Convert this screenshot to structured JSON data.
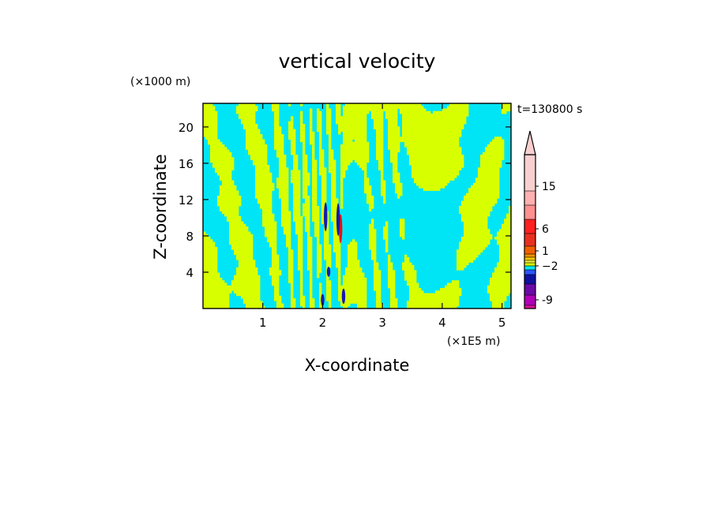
{
  "chart_data": {
    "type": "heatmap",
    "title": "vertical velocity",
    "xlabel": "X-coordinate",
    "ylabel": "Z-coordinate",
    "x_unit": "(×1E5 m)",
    "y_unit": "(×1000 m)",
    "time_label": "t=130800 s",
    "xlim": [
      0,
      5.15
    ],
    "ylim": [
      0,
      22.6
    ],
    "x_ticks": [
      1,
      2,
      3,
      4,
      5
    ],
    "x_tick_labels": [
      "1",
      "2",
      "3",
      "4",
      "5"
    ],
    "y_ticks": [
      4,
      8,
      12,
      16,
      20
    ],
    "y_tick_labels": [
      "4",
      "8",
      "12",
      "16",
      "20"
    ],
    "colorbar": {
      "levels": [
        -9,
        -2,
        1,
        6,
        15
      ],
      "level_labels": [
        "-9",
        "−2",
        "1",
        "6",
        "15"
      ],
      "colors": [
        "#e0109a",
        "#b000b8",
        "#6a0aa8",
        "#1010a0",
        "#2a55ff",
        "#00e5f0",
        "#d4f000",
        "#f0f040",
        "#f0c800",
        "#f09000",
        "#f06000",
        "#e83020",
        "#ff2020",
        "#ff9090",
        "#ffb0b0",
        "#f8d0d0"
      ],
      "extend": "max"
    },
    "field_colors": {
      "positive": "#d8ff00",
      "negative": "#00e5f5",
      "updraft": "#e81010",
      "downdraft": "#1818b0"
    },
    "features": [
      {
        "x": 2.3,
        "z_min": 7.2,
        "z_max": 10.4,
        "value": 15
      },
      {
        "x": 2.26,
        "z_min": 8.0,
        "z_max": 11.6,
        "value": -9
      },
      {
        "x": 2.05,
        "z_min": 8.5,
        "z_max": 11.7,
        "value": -9
      },
      {
        "x": 2.1,
        "z_min": 3.5,
        "z_max": 4.6,
        "value": -9
      },
      {
        "x": 2.0,
        "z_min": 0.3,
        "z_max": 1.6,
        "value": -9
      },
      {
        "x": 2.35,
        "z_min": 0.5,
        "z_max": 2.2,
        "value": -9
      }
    ]
  }
}
